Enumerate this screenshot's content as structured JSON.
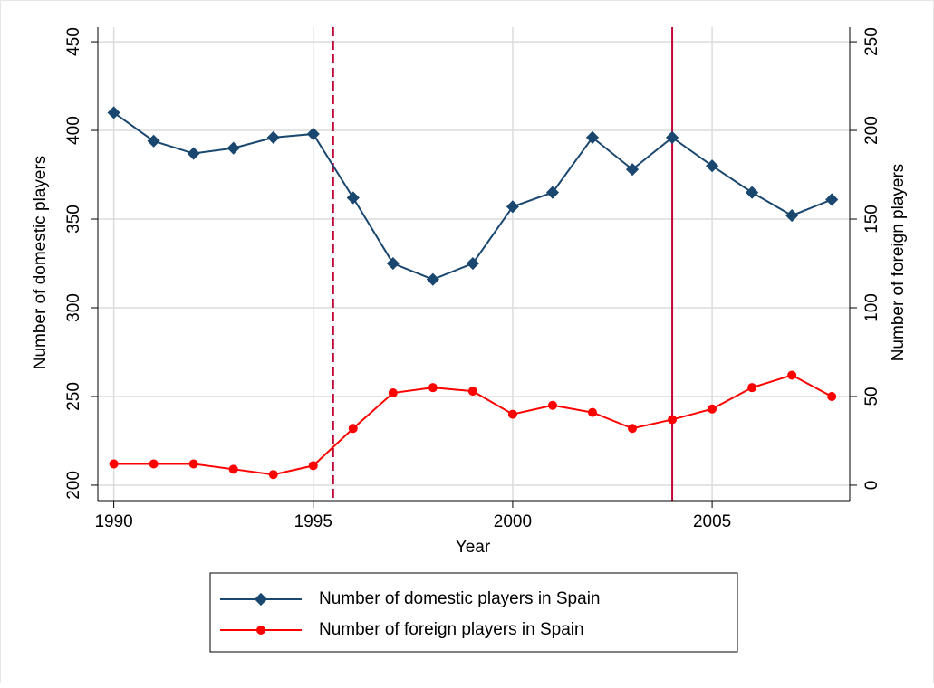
{
  "chart_data": {
    "type": "line",
    "x": [
      1990,
      1991,
      1992,
      1993,
      1994,
      1995,
      1996,
      1997,
      1998,
      1999,
      2000,
      2001,
      2002,
      2003,
      2004,
      2005,
      2006,
      2007,
      2008
    ],
    "xlabel": "Year",
    "ylabel": "Number of domestic players",
    "y2label": "Number of foreign players",
    "series": [
      {
        "name": "Number of domestic players in Spain",
        "color": "#1a476f",
        "marker": "diamond",
        "values": [
          410,
          394,
          387,
          390,
          396,
          398,
          362,
          325,
          316,
          325,
          357,
          365,
          396,
          378,
          396,
          380,
          365,
          352,
          361
        ]
      },
      {
        "name": "Number of foreign players in Spain",
        "color": "#ff0000",
        "marker": "circle",
        "axis": "y2",
        "values": [
          12,
          12,
          12,
          9,
          6,
          11,
          32,
          52,
          55,
          53,
          40,
          45,
          41,
          32,
          37,
          43,
          55,
          62,
          50
        ]
      }
    ],
    "xlim": [
      1989.6,
      2008.45
    ],
    "xticks": [
      1990,
      1995,
      2000,
      2005
    ],
    "ylim": [
      191.3,
      458.2
    ],
    "yticks": [
      200,
      250,
      300,
      350,
      400,
      450
    ],
    "y2lim": [
      -8.7,
      258.2
    ],
    "y2ticks": [
      0,
      50,
      100,
      150,
      200,
      250
    ],
    "vlines": [
      {
        "x": 1995.5,
        "style": "dashed",
        "color": "#c10534"
      },
      {
        "x": 2004,
        "style": "solid",
        "color": "#c10534"
      }
    ],
    "grid": true,
    "legend": "bottom"
  }
}
